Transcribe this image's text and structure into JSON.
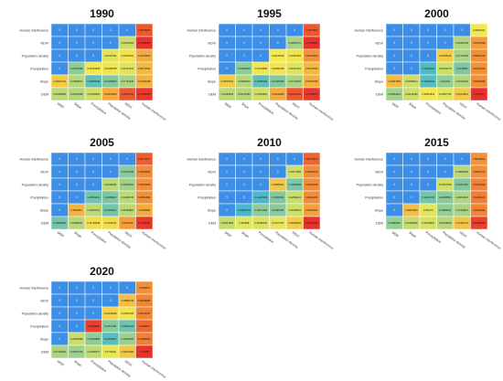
{
  "row_labels": [
    "Human interference",
    "NDVI",
    "Population density",
    "Precipitation",
    "Slope",
    "DEM"
  ],
  "col_labels": [
    "DEM",
    "Slope",
    "Precipitation",
    "Population density",
    "NDVI",
    "Human interference"
  ],
  "colors": {
    "zero": "#3d8ee6",
    "low": "#3d8ee6",
    "mid": "#f2e94f",
    "high": "#e8312a",
    "border": "#ffffff"
  },
  "chart_data": [
    {
      "type": "heatmap",
      "title": "1990",
      "rows": [
        "Human interference",
        "NDVI",
        "Population density",
        "Precipitation",
        "Slope",
        "DEM"
      ],
      "columns": [
        "DEM",
        "Slope",
        "Precipitation",
        "Population density",
        "NDVI",
        "Human interference"
      ],
      "values": [
        [
          0,
          0,
          0,
          0,
          0,
          0.664783072
        ],
        [
          0,
          0,
          0,
          0,
          0.326079035,
          0.71788825
        ],
        [
          0,
          0,
          0,
          0.363475005,
          0.403347815,
          0.53079953
        ],
        [
          0,
          0.23025996,
          0.39733838,
          0.40098788,
          0.36127001,
          0.50272002
        ],
        [
          0.45533722,
          0.29565012,
          0.16055039,
          0.21325033,
          0.27701945,
          0.51544658
        ],
        [
          0.30180546,
          0.29215383,
          0.33335894,
          0.53239084,
          0.66229749,
          0.71208753
        ]
      ]
    },
    {
      "type": "heatmap",
      "title": "1995",
      "rows": [
        "Human interference",
        "NDVI",
        "Population density",
        "Precipitation",
        "Slope",
        "DEM"
      ],
      "columns": [
        "DEM",
        "Slope",
        "Precipitation",
        "Population density",
        "NDVI",
        "Human interference"
      ],
      "values": [
        [
          0,
          0,
          0,
          0,
          0,
          0.6647835
        ],
        [
          0,
          0,
          0,
          0,
          0.26507751,
          0.71788825
        ],
        [
          0,
          0,
          0,
          0.39135028,
          0.40347815,
          0.58079953
        ],
        [
          0,
          0.23025996,
          0.39733838,
          0.40098788,
          0.36127001,
          0.50272002
        ],
        [
          0.45533722,
          0.29565012,
          0.16055039,
          0.21325035,
          0.27701945,
          0.51544658
        ],
        [
          0.30180546,
          0.29215393,
          0.33335894,
          0.53239084,
          0.66229749,
          0.71208753
        ]
      ]
    },
    {
      "type": "heatmap",
      "title": "2000",
      "rows": [
        "Human interference",
        "NDVI",
        "Population density",
        "Precipitation",
        "Slope",
        "DEM"
      ],
      "columns": [
        "DEM",
        "Slope",
        "Precipitation",
        "Population density",
        "NDVI",
        "Human interference"
      ],
      "values": [
        [
          0,
          0,
          0,
          0,
          0,
          0.38202411
        ],
        [
          0,
          0,
          0,
          0,
          0.28143766,
          0.56875996
        ],
        [
          0,
          0,
          0,
          0.45535126,
          0.27733565,
          0.58507203
        ],
        [
          0,
          0,
          0.13044002,
          0.33234773,
          0.2049996,
          0.58410413
        ],
        [
          0.49947884,
          0.33058944,
          0.14545343,
          0.241224,
          0.29142047,
          0.58650086
        ],
        [
          0.26064901,
          0.33134469,
          0.39543843,
          0.36507783,
          0.46113819,
          0.7749717
        ]
      ]
    },
    {
      "type": "heatmap",
      "title": "2005",
      "rows": [
        "Human interference",
        "NDVI",
        "Population density",
        "Precipitation",
        "Slope",
        "DEM"
      ],
      "columns": [
        "DEM",
        "Slope",
        "Precipitation",
        "Population density",
        "NDVI",
        "Human interference"
      ],
      "values": [
        [
          0,
          0,
          0,
          0,
          0,
          0.65774877
        ],
        [
          0,
          0,
          0,
          0,
          0.22272358,
          0.59180961
        ],
        [
          0,
          0,
          0,
          0.30384081,
          0.26216954,
          0.58290984
        ],
        [
          0,
          0,
          0.18549051,
          0.19958017,
          0.30350735,
          0.58550861
        ],
        [
          0,
          0.5094851,
          0.30045701,
          0.19330371,
          0.30383887,
          0.5308386
        ],
        [
          0.18865309,
          0.29698667,
          0.41739948,
          0.41539701,
          0.5631366,
          0.70935461
        ]
      ]
    },
    {
      "type": "heatmap",
      "title": "2010",
      "rows": [
        "Human interference",
        "NDVI",
        "Population density",
        "Precipitation",
        "Slope",
        "DEM"
      ],
      "columns": [
        "DEM",
        "Slope",
        "Precipitation",
        "Population density",
        "NDVI",
        "Human interference"
      ],
      "values": [
        [
          0,
          0,
          0,
          0,
          0,
          0.64728679
        ],
        [
          0,
          0,
          0,
          0,
          0.33277866,
          0.59065213
        ],
        [
          0,
          0,
          0,
          0.46868311,
          0.20086329,
          0.59023292
        ],
        [
          0,
          0,
          0.12327046,
          0.21395131,
          0.32554223,
          0.59011031
        ],
        [
          0,
          0.04997376,
          0.22871659,
          0.21987351,
          0.33155934,
          0.55358432
        ],
        [
          0.31874383,
          0.364858,
          0.35385904,
          0.37077037,
          0.45269669,
          0.72304597
        ]
      ]
    },
    {
      "type": "heatmap",
      "title": "2015",
      "rows": [
        "Human interference",
        "NDVI",
        "Population density",
        "Precipitation",
        "Slope",
        "DEM"
      ],
      "columns": [
        "DEM",
        "Slope",
        "Precipitation",
        "Population density",
        "NDVI",
        "Human interference"
      ],
      "values": [
        [
          0,
          0,
          0,
          0,
          0,
          0.58018802
        ],
        [
          0,
          0,
          0,
          0,
          0.29863382,
          0.58874747
        ],
        [
          0,
          0,
          0,
          0.33527016,
          0.21047957,
          0.60220229
        ],
        [
          0,
          0,
          0.19031706,
          0.22389564,
          0.28074617,
          0.61159474
        ],
        [
          0,
          0.48827894,
          0.366279,
          0.23883521,
          0.27539817,
          0.60040091
        ],
        [
          0.23889051,
          0.31638366,
          0.34518587,
          0.29348909,
          0.47407727,
          0.69995168
        ]
      ]
    },
    {
      "type": "heatmap",
      "title": "2020",
      "rows": [
        "Human interference",
        "NDVI",
        "Population density",
        "Precipitation",
        "Slope",
        "DEM"
      ],
      "columns": [
        "DEM",
        "Slope",
        "Precipitation",
        "Population density",
        "NDVI",
        "Human interference"
      ],
      "values": [
        [
          0,
          0,
          0,
          0,
          0,
          0.5836057
        ],
        [
          0,
          0,
          0,
          0,
          0.48856748,
          0.59928987
        ],
        [
          0,
          0,
          0,
          0.44014289,
          0.40057295,
          0.60119787
        ],
        [
          0,
          0,
          0.69983858,
          0.21577081,
          0.18034433,
          0.6428807
        ],
        [
          0,
          0.32525586,
          0.22994865,
          0.14600877,
          0.25030609,
          0.60889965
        ],
        [
          0.27440464,
          0.25572702,
          0.30465077,
          0.3716946,
          0.46473968,
          0.74478
        ]
      ]
    }
  ]
}
